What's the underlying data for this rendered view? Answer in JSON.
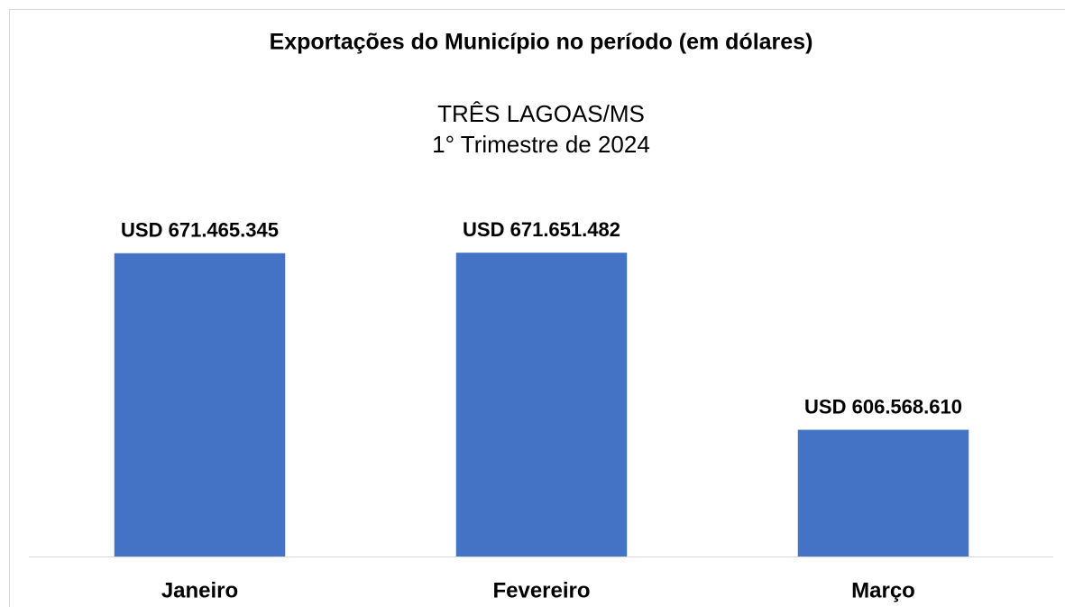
{
  "chart_data": {
    "type": "bar",
    "title": "Exportações  do Município  no período  (em dólares)",
    "subtitle": [
      "TRÊS LAGOAS/MS",
      "1° Trimestre de 2024"
    ],
    "categories": [
      "Janeiro",
      "Fevereiro",
      "Março"
    ],
    "values": [
      671465345,
      671651482,
      606568610
    ],
    "value_labels": [
      "USD 671.465.345",
      "USD 671.651.482",
      "USD 606.568.610"
    ],
    "color": "#4472c4",
    "ylim": [
      560000000,
      680000000
    ]
  }
}
